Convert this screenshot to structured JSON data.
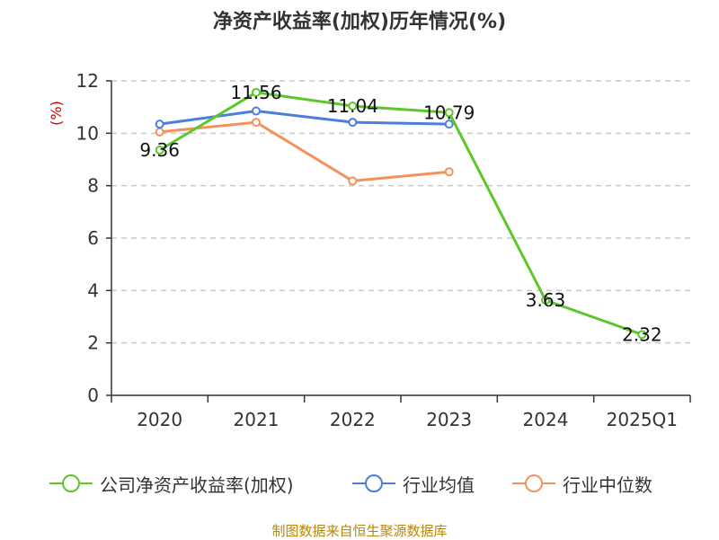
{
  "title": "净资产收益率(加权)历年情况(%)",
  "source": "制图数据来自恒生聚源数据库",
  "chart_data": {
    "type": "line",
    "title": "净资产收益率(加权)历年情况(%)",
    "unit_label": "(%)",
    "categories": [
      "2020",
      "2021",
      "2022",
      "2023",
      "2024",
      "2025Q1"
    ],
    "ylim": [
      0,
      12
    ],
    "yticks": [
      "0",
      "2",
      "4",
      "6",
      "8",
      "10",
      "12"
    ],
    "grid": true,
    "legend_position": "bottom",
    "series": [
      {
        "name": "公司净资产收益率(加权)",
        "color": "#5cc72b",
        "values": [
          9.36,
          11.56,
          11.04,
          10.79,
          3.63,
          2.32
        ],
        "labels": [
          "9.36",
          "11.56",
          "11.04",
          "10.79",
          "3.63",
          "2.32"
        ]
      },
      {
        "name": "行业均值",
        "color": "#4a7fdc",
        "values": [
          10.35,
          10.85,
          10.42,
          10.35,
          null,
          null
        ]
      },
      {
        "name": "行业中位数",
        "color": "#f5915a",
        "values": [
          10.05,
          10.42,
          8.18,
          8.53,
          null,
          null
        ]
      }
    ]
  }
}
